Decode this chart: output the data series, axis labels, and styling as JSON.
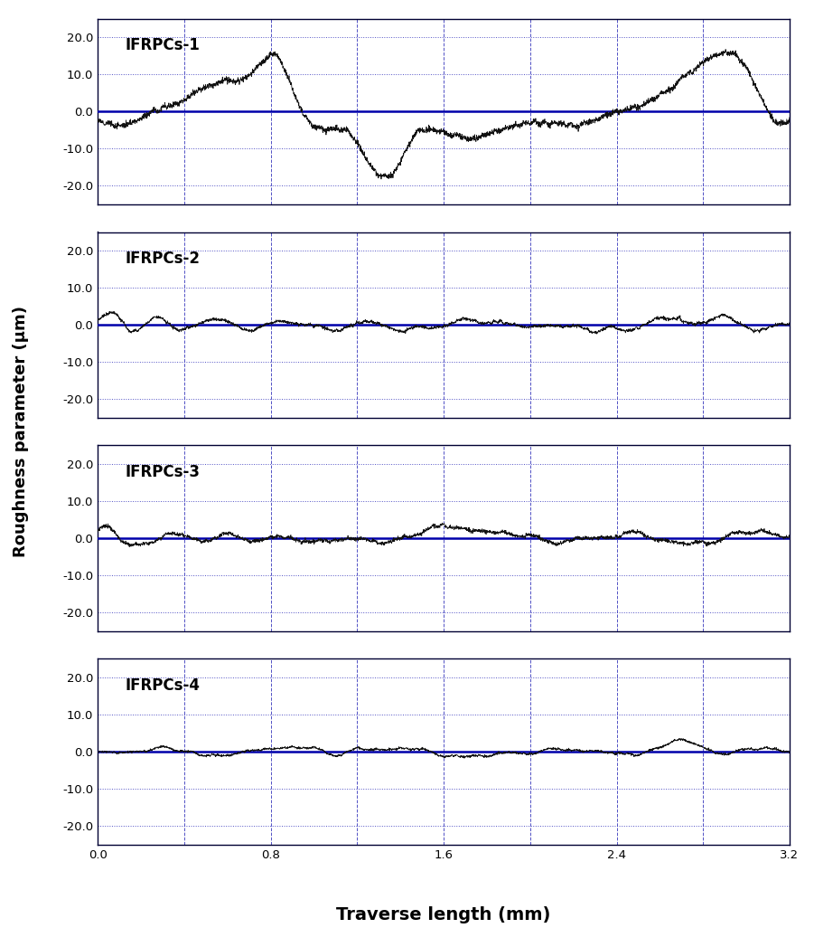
{
  "ylabel": "Roughness parameter (μm)",
  "xlabel": "Traverse length (mm)",
  "xlim": [
    0.0,
    3.2
  ],
  "ylim": [
    -25.0,
    25.0
  ],
  "yticks": [
    -20.0,
    -10.0,
    0.0,
    10.0,
    20.0
  ],
  "xticks": [
    0.0,
    0.8,
    1.6,
    2.4,
    3.2
  ],
  "panels": [
    "IFRPCs-1",
    "IFRPCs-2",
    "IFRPCs-3",
    "IFRPCs-4"
  ],
  "line_color": "#111111",
  "zero_line_color": "#0000aa",
  "grid_color": "#3333bb",
  "background_color": "#ffffff",
  "n_points": 3200
}
